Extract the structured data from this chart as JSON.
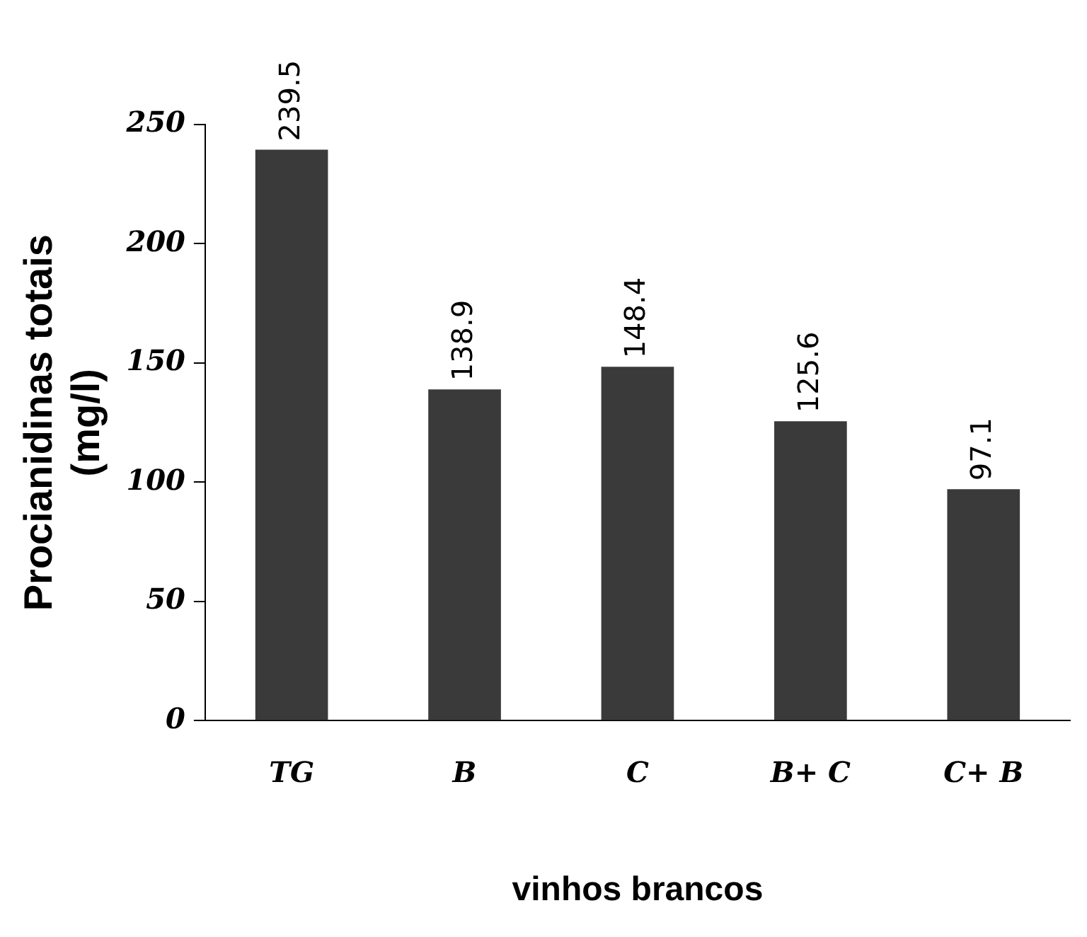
{
  "chart_data": {
    "type": "bar",
    "xlabel": "vinhos brancos",
    "ylabel": "Procianidinas totais\n(mg/l)",
    "categories": [
      "TG",
      "B",
      "C",
      "B+ C",
      "C+ B"
    ],
    "values": [
      239.5,
      138.9,
      148.4,
      125.6,
      97.1
    ],
    "color": "#3a3a3a",
    "ylim": [
      0,
      250
    ],
    "yticks": [
      0,
      50,
      100,
      150,
      200,
      250
    ],
    "grid": false,
    "legend": false,
    "data_labels": true
  }
}
